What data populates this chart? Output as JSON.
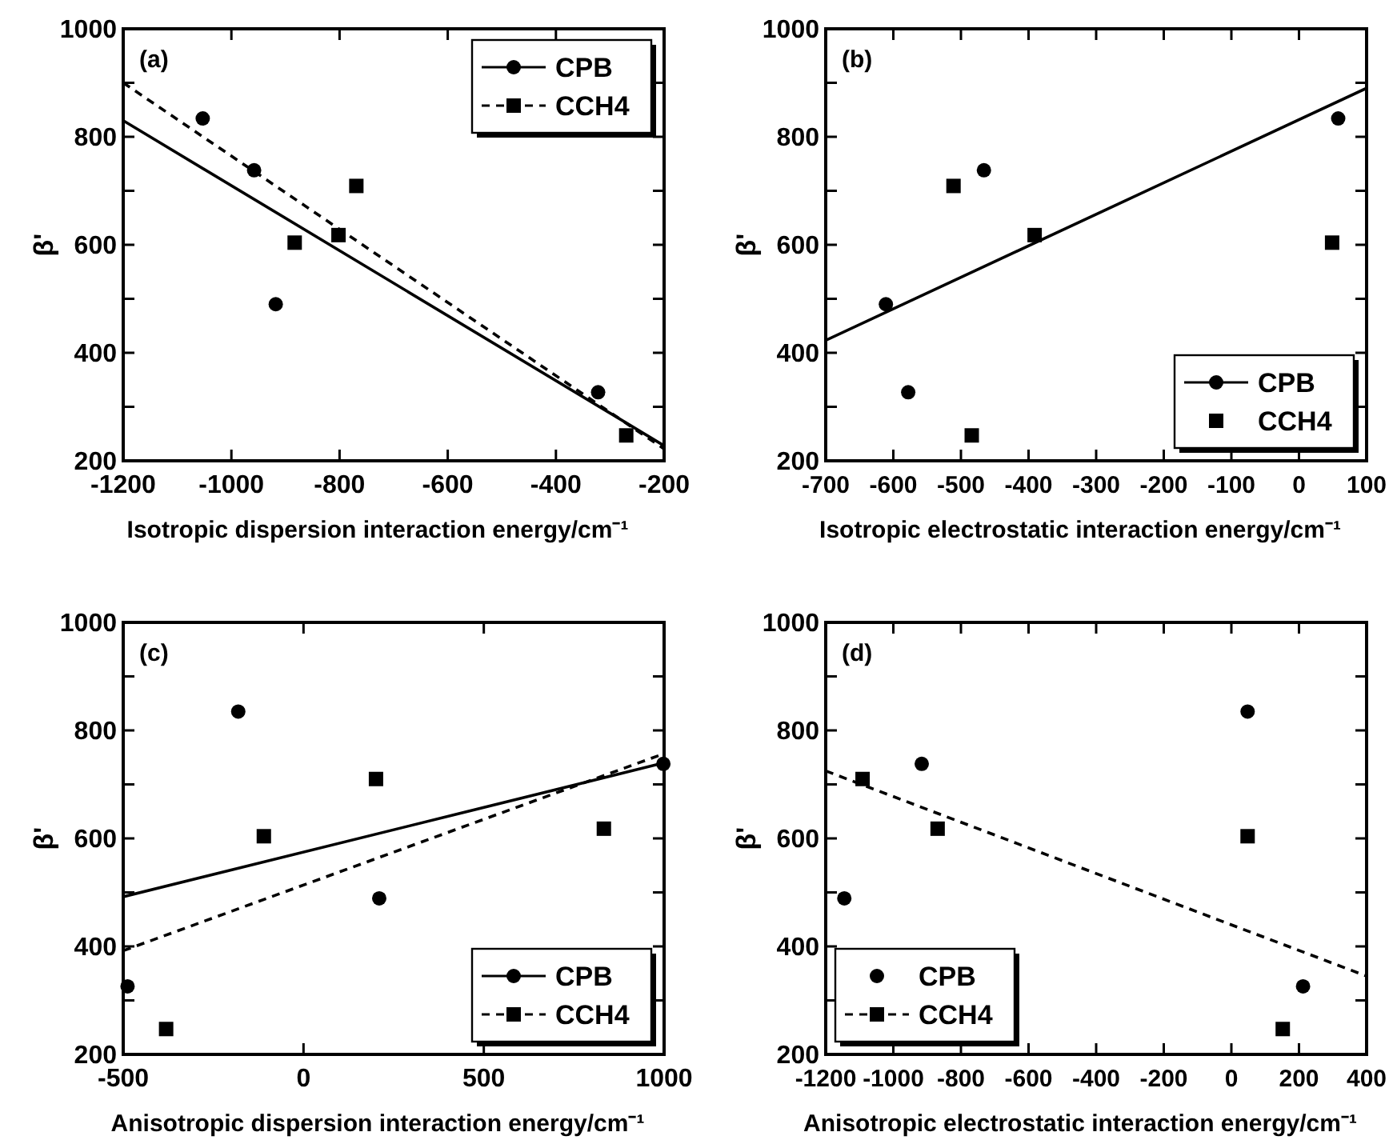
{
  "chart_data": [
    {
      "type": "scatter",
      "annotations": [
        "(a)"
      ],
      "xlabel": "Isotropic dispersion interaction energy/cm⁻¹",
      "ylabel": "β'",
      "xlim": [
        -1200,
        -200
      ],
      "ylim": [
        200,
        1000
      ],
      "xticks": [
        -1200,
        -1000,
        -800,
        -600,
        -400,
        -200
      ],
      "yticks": [
        200,
        {
          "value": 300,
          "label": null
        },
        400,
        {
          "value": 500,
          "label": null
        },
        600,
        {
          "value": 700,
          "label": null
        },
        800,
        {
          "value": 900,
          "label": null
        },
        1000
      ],
      "legend": "top right",
      "series": [
        {
          "name": "CPB",
          "type": "scatter",
          "marker": "circle",
          "color": "#000000",
          "x": [
            -1053,
            -958,
            -918,
            -322
          ],
          "values": [
            834,
            738,
            490,
            327
          ]
        },
        {
          "type": "line",
          "line_style": "solid",
          "color": "#000000",
          "x": [
            -1200,
            -200
          ],
          "values": [
            830,
            228
          ]
        },
        {
          "name": "CCH4",
          "type": "scatter",
          "marker": "square",
          "color": "#000000",
          "x": [
            -883,
            -769,
            -802,
            -270
          ],
          "values": [
            604,
            709,
            618,
            247
          ]
        },
        {
          "type": "line",
          "line_style": "dashed",
          "color": "#000000",
          "x": [
            -1200,
            -200
          ],
          "values": [
            900,
            222
          ]
        }
      ]
    },
    {
      "type": "scatter",
      "annotations": [
        "(b)"
      ],
      "xlabel": "Isotropic electrostatic interaction energy/cm⁻¹",
      "ylabel": "β'",
      "xlim": [
        -700,
        100
      ],
      "ylim": [
        200,
        1000
      ],
      "xticks": [
        -700,
        -600,
        -500,
        -400,
        -300,
        -200,
        -100,
        0,
        100
      ],
      "yticks": [
        200,
        {
          "value": 300,
          "label": null
        },
        400,
        {
          "value": 500,
          "label": null
        },
        600,
        {
          "value": 700,
          "label": null
        },
        800,
        {
          "value": 900,
          "label": null
        },
        1000
      ],
      "legend": "bottom right",
      "series": [
        {
          "name": "CPB",
          "type": "scatter",
          "marker": "circle",
          "color": "#000000",
          "x": [
            -611,
            -578,
            -466,
            58
          ],
          "values": [
            490,
            327,
            738,
            834
          ]
        },
        {
          "type": "line",
          "line_style": "solid",
          "color": "#000000",
          "x": [
            -700,
            100
          ],
          "values": [
            423,
            890
          ]
        },
        {
          "name": "CCH4",
          "type": "scatter",
          "marker": "square",
          "color": "#000000",
          "x": [
            -511,
            -484,
            -391,
            49
          ],
          "values": [
            709,
            247,
            618,
            604
          ]
        }
      ]
    },
    {
      "type": "scatter",
      "annotations": [
        "(c)"
      ],
      "xlabel": "Anisotropic dispersion interaction energy/cm⁻¹",
      "ylabel": "β'",
      "xlim": [
        -500,
        1000
      ],
      "ylim": [
        200,
        1000
      ],
      "xticks": [
        -500,
        0,
        500,
        1000
      ],
      "yticks": [
        200,
        {
          "value": 300,
          "label": null
        },
        400,
        {
          "value": 500,
          "label": null
        },
        600,
        {
          "value": 700,
          "label": null
        },
        800,
        {
          "value": 900,
          "label": null
        },
        1000
      ],
      "legend": "bottom right",
      "series": [
        {
          "name": "CPB",
          "type": "scatter",
          "marker": "circle",
          "color": "#000000",
          "x": [
            -488,
            -181,
            210,
            998
          ],
          "values": [
            326,
            835,
            489,
            738
          ]
        },
        {
          "type": "line",
          "line_style": "solid",
          "color": "#000000",
          "x": [
            -500,
            1000
          ],
          "values": [
            492,
            740
          ]
        },
        {
          "name": "CCH4",
          "type": "scatter",
          "marker": "square",
          "color": "#000000",
          "x": [
            -381,
            -110,
            201,
            833
          ],
          "values": [
            247,
            604,
            710,
            618
          ]
        },
        {
          "type": "line",
          "line_style": "dashed",
          "color": "#000000",
          "x": [
            -500,
            1000
          ],
          "values": [
            392,
            757
          ]
        }
      ]
    },
    {
      "type": "scatter",
      "annotations": [
        "(d)"
      ],
      "xlabel": "Anisotropic electrostatic interaction energy/cm⁻¹",
      "ylabel": "β'",
      "xlim": [
        -1200,
        400
      ],
      "ylim": [
        200,
        1000
      ],
      "xticks": [
        -1200,
        -1000,
        -800,
        -600,
        -400,
        -200,
        0,
        200,
        400
      ],
      "yticks": [
        200,
        {
          "value": 300,
          "label": null
        },
        400,
        {
          "value": 500,
          "label": null
        },
        600,
        {
          "value": 700,
          "label": null
        },
        800,
        {
          "value": 900,
          "label": null
        },
        1000
      ],
      "legend": "bottom left",
      "series": [
        {
          "name": "CPB",
          "type": "scatter",
          "marker": "circle",
          "color": "#000000",
          "x": [
            -1145,
            -916,
            48,
            212
          ],
          "values": [
            489,
            738,
            835,
            326
          ]
        },
        {
          "name": "CCH4",
          "type": "scatter",
          "marker": "square",
          "color": "#000000",
          "x": [
            -1091,
            -869,
            48,
            152
          ],
          "values": [
            710,
            618,
            604,
            247
          ]
        },
        {
          "type": "line",
          "line_style": "dashed",
          "color": "#000000",
          "x": [
            -1200,
            400
          ],
          "values": [
            725,
            345
          ]
        }
      ]
    }
  ]
}
